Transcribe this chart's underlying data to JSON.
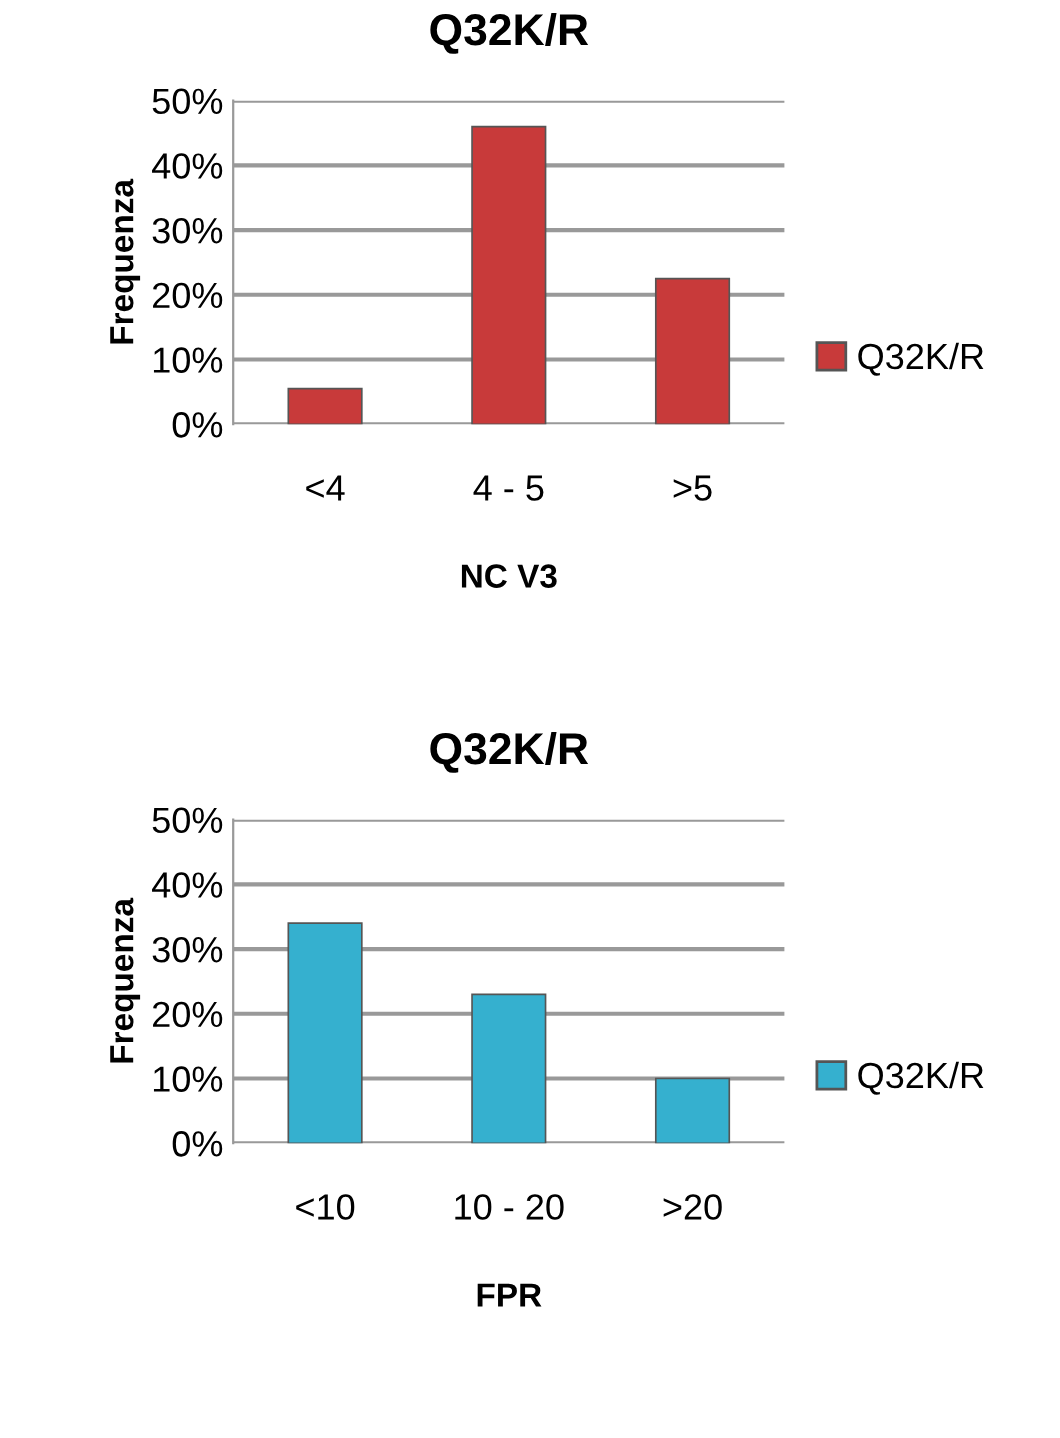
{
  "chart_data": [
    {
      "type": "bar",
      "title": "Q32K/R",
      "xlabel": "NC V3",
      "ylabel": "Frequenza",
      "categories": [
        "<4",
        "4 - 5",
        ">5"
      ],
      "series": [
        {
          "name": "Q32K/R",
          "color": "#c83a3a",
          "values": [
            5.5,
            46,
            22.5
          ]
        }
      ],
      "ylim": [
        0,
        50
      ],
      "yticks": [
        {
          "value": 0,
          "label": "0%"
        },
        {
          "value": 10,
          "label": "10%"
        },
        {
          "value": 20,
          "label": "20%"
        },
        {
          "value": 30,
          "label": "30%"
        },
        {
          "value": 40,
          "label": "40%"
        },
        {
          "value": 50,
          "label": "50%"
        }
      ],
      "grid": "y",
      "legend": "right"
    },
    {
      "type": "bar",
      "title": "Q32K/R",
      "xlabel": "FPR",
      "ylabel": "Frequenza",
      "categories": [
        "<10",
        "10 - 20",
        ">20"
      ],
      "series": [
        {
          "name": "Q32K/R",
          "color": "#35b0cf",
          "values": [
            34,
            23,
            10
          ]
        }
      ],
      "ylim": [
        0,
        50
      ],
      "yticks": [
        {
          "value": 0,
          "label": "0%"
        },
        {
          "value": 10,
          "label": "10%"
        },
        {
          "value": 20,
          "label": "20%"
        },
        {
          "value": 30,
          "label": "30%"
        },
        {
          "value": 40,
          "label": "40%"
        },
        {
          "value": 50,
          "label": "50%"
        }
      ],
      "grid": "y",
      "legend": "right"
    }
  ]
}
